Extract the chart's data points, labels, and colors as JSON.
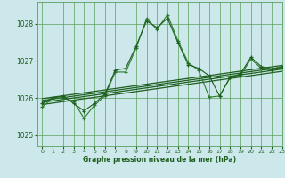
{
  "title": "Graphe pression niveau de la mer (hPa)",
  "bg_color": "#cce8eb",
  "grid_color": "#5a9e5a",
  "line_color_dark": "#1e5e1e",
  "line_color_med": "#2e7d2e",
  "xlim": [
    -0.5,
    23
  ],
  "ylim": [
    1024.7,
    1028.6
  ],
  "yticks": [
    1025,
    1026,
    1027,
    1028
  ],
  "xticks": [
    0,
    1,
    2,
    3,
    4,
    5,
    6,
    7,
    8,
    9,
    10,
    11,
    12,
    13,
    14,
    15,
    16,
    17,
    18,
    19,
    20,
    21,
    22,
    23
  ],
  "series_main_x": [
    0,
    1,
    2,
    3,
    4,
    5,
    6,
    7,
    8,
    9,
    10,
    11,
    12,
    13,
    14,
    15,
    16,
    17,
    18,
    19,
    20,
    21,
    22,
    23
  ],
  "series_main_y": [
    1025.75,
    1026.0,
    1026.0,
    1025.9,
    1025.45,
    1025.8,
    1026.05,
    1026.7,
    1026.7,
    1027.35,
    1028.15,
    1027.85,
    1028.25,
    1027.55,
    1026.95,
    1026.75,
    1026.02,
    1026.05,
    1026.55,
    1026.6,
    1027.05,
    1026.8,
    1026.75,
    1026.82
  ],
  "series2_x": [
    0,
    1,
    2,
    3,
    4,
    5,
    6,
    7,
    8,
    9,
    10,
    11,
    12,
    13,
    14,
    15,
    16,
    17,
    18,
    19,
    20,
    21,
    22,
    23
  ],
  "series2_y": [
    1025.85,
    1026.0,
    1026.05,
    1025.85,
    1025.65,
    1025.85,
    1026.1,
    1026.75,
    1026.8,
    1027.4,
    1028.08,
    1027.9,
    1028.15,
    1027.5,
    1026.9,
    1026.8,
    1026.6,
    1026.05,
    1026.55,
    1026.65,
    1027.1,
    1026.85,
    1026.78,
    1026.85
  ],
  "trend1_x": [
    0,
    23
  ],
  "trend1_y": [
    1025.82,
    1026.72
  ],
  "trend2_x": [
    0,
    23
  ],
  "trend2_y": [
    1025.88,
    1026.78
  ],
  "trend3_x": [
    0,
    23
  ],
  "trend3_y": [
    1025.93,
    1026.83
  ],
  "trend4_x": [
    0,
    23
  ],
  "trend4_y": [
    1025.98,
    1026.88
  ]
}
